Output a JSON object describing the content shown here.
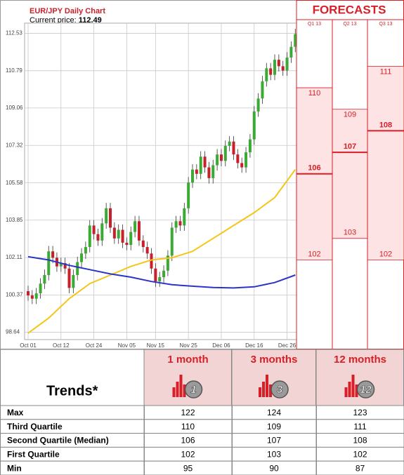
{
  "chart_data": {
    "type": "candlestick",
    "title": "EUR/JPY Daily Chart",
    "current_price_label": "Current price:",
    "current_price": 112.49,
    "categories": [
      "Oct 01",
      null,
      null,
      null,
      null,
      null,
      null,
      null,
      "Oct 12",
      null,
      null,
      null,
      null,
      null,
      null,
      null,
      "Oct 24",
      null,
      null,
      null,
      null,
      null,
      null,
      null,
      "Nov 05",
      null,
      null,
      null,
      null,
      null,
      null,
      "Nov 15",
      null,
      null,
      null,
      null,
      null,
      null,
      null,
      "Nov 25",
      null,
      null,
      null,
      null,
      null,
      null,
      null,
      "Dec 06",
      null,
      null,
      null,
      null,
      null,
      null,
      null,
      "Dec 16",
      null,
      null,
      null,
      null,
      null,
      null,
      null,
      "Dec 26",
      null,
      null
    ],
    "open": [
      100.55,
      100.35,
      100.2,
      100.45,
      100.9,
      101.3,
      102.4,
      102.1,
      101.7,
      101.85,
      101.6,
      100.7,
      101.3,
      101.9,
      102.3,
      102.6,
      103.6,
      103.2,
      102.9,
      103.7,
      104.4,
      103.5,
      103.0,
      103.4,
      102.8,
      102.7,
      103.3,
      103.8,
      102.9,
      102.6,
      102.3,
      101.6,
      101.0,
      101.2,
      101.5,
      102.2,
      103.5,
      103.8,
      103.6,
      104.4,
      105.6,
      106.2,
      106.0,
      106.8,
      106.3,
      105.8,
      106.4,
      106.9,
      106.6,
      107.3,
      107.5,
      106.9,
      106.5,
      106.3,
      107.0,
      107.6,
      108.9,
      109.5,
      110.3,
      110.9,
      110.6,
      111.3,
      111.0,
      110.8,
      111.4,
      111.9
    ],
    "high": [
      100.8,
      100.6,
      100.7,
      101.15,
      101.55,
      102.65,
      102.65,
      102.35,
      102.1,
      102.1,
      101.85,
      101.55,
      102.15,
      102.55,
      102.85,
      103.85,
      103.85,
      103.45,
      103.95,
      104.65,
      104.65,
      103.75,
      103.65,
      103.65,
      103.05,
      103.55,
      104.05,
      104.05,
      103.15,
      102.85,
      102.55,
      101.85,
      101.45,
      101.75,
      102.45,
      103.75,
      104.05,
      104.05,
      104.65,
      105.85,
      106.45,
      106.45,
      107.05,
      107.05,
      106.55,
      106.65,
      107.15,
      107.15,
      107.55,
      107.75,
      107.75,
      107.15,
      106.75,
      107.25,
      107.85,
      109.15,
      109.75,
      110.55,
      111.15,
      111.15,
      111.55,
      111.55,
      111.25,
      111.65,
      112.15,
      112.74
    ],
    "low": [
      100.1,
      99.95,
      99.95,
      100.2,
      100.65,
      101.05,
      101.85,
      101.45,
      101.45,
      101.35,
      100.45,
      100.45,
      101.05,
      101.65,
      102.05,
      102.35,
      102.95,
      102.65,
      102.65,
      103.45,
      103.25,
      102.75,
      102.75,
      102.55,
      102.45,
      102.45,
      103.05,
      102.65,
      102.35,
      102.05,
      101.35,
      100.75,
      100.75,
      100.95,
      101.25,
      101.95,
      103.25,
      103.35,
      103.35,
      104.15,
      105.35,
      105.75,
      105.75,
      106.05,
      105.55,
      105.55,
      106.15,
      106.35,
      106.35,
      107.05,
      106.65,
      106.25,
      106.05,
      106.05,
      106.75,
      107.35,
      108.65,
      109.25,
      110.05,
      110.35,
      110.35,
      110.75,
      110.55,
      110.55,
      111.15,
      111.65
    ],
    "close": [
      100.35,
      100.2,
      100.45,
      100.9,
      101.3,
      102.4,
      102.1,
      101.7,
      101.85,
      101.6,
      100.7,
      101.3,
      101.9,
      102.3,
      102.6,
      103.6,
      103.2,
      102.9,
      103.7,
      104.4,
      103.5,
      103.0,
      103.4,
      102.8,
      102.7,
      103.3,
      103.8,
      102.9,
      102.6,
      102.3,
      101.6,
      101.0,
      101.2,
      101.5,
      102.2,
      103.5,
      103.8,
      103.6,
      104.4,
      105.6,
      106.2,
      106.0,
      106.8,
      106.3,
      105.8,
      106.4,
      106.9,
      106.6,
      107.3,
      107.5,
      106.9,
      106.5,
      106.3,
      107.0,
      107.6,
      108.9,
      109.5,
      110.3,
      110.9,
      110.6,
      111.3,
      111.0,
      110.8,
      111.4,
      111.9,
      112.49
    ],
    "up_color": "#3aaa35",
    "down_color": "#c8202a",
    "lines": [
      {
        "color": "#f5c518",
        "x": [
          0,
          5,
          10,
          15,
          20,
          25,
          30,
          35,
          40,
          45,
          50,
          55,
          60,
          65
        ],
        "values": [
          98.6,
          99.3,
          100.2,
          100.9,
          101.3,
          101.7,
          102.0,
          102.1,
          102.4,
          103.0,
          103.6,
          104.2,
          104.9,
          106.2
        ]
      },
      {
        "color": "#2a34c8",
        "x": [
          0,
          5,
          10,
          15,
          20,
          25,
          30,
          35,
          40,
          45,
          50,
          55,
          60,
          65
        ],
        "values": [
          102.15,
          102.0,
          101.75,
          101.55,
          101.35,
          101.2,
          101.0,
          100.85,
          100.78,
          100.72,
          100.7,
          100.75,
          100.95,
          101.3
        ]
      }
    ],
    "ylim": [
      98.3,
      113.0
    ],
    "yticks": [
      98.64,
      100.37,
      102.11,
      103.85,
      105.58,
      107.32,
      109.06,
      110.79,
      112.53
    ],
    "grid": true,
    "forecast": {
      "title": "FORECASTS",
      "categories": [
        "Q1 13",
        "Q2 13",
        "Q3 13"
      ],
      "third_quartile": [
        110,
        109,
        111
      ],
      "median": [
        106,
        107,
        108
      ],
      "first_quartile": [
        102,
        103,
        102
      ],
      "color": "#d81e26",
      "fill": "#fde3e3"
    }
  },
  "table": {
    "title": "Trends*",
    "columns": [
      "1 month",
      "3 months",
      "12 months"
    ],
    "icon_numbers": [
      "1",
      "3",
      "12"
    ],
    "rows": [
      [
        "Max",
        122,
        124,
        123
      ],
      [
        "Third Quartile",
        110,
        109,
        111
      ],
      [
        "Second Quartile (Median)",
        106,
        107,
        108
      ],
      [
        "First Quartile",
        102,
        103,
        102
      ],
      [
        "Min",
        95,
        90,
        87
      ]
    ]
  }
}
